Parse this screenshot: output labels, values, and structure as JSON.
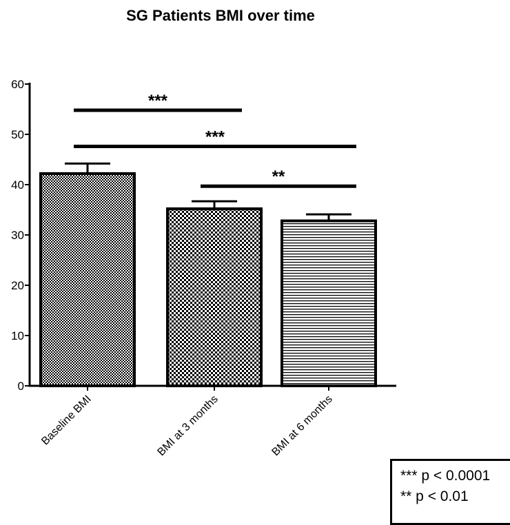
{
  "chart_data": {
    "type": "bar",
    "title": "SG Patients BMI over time",
    "categories": [
      "Baseline BMI",
      "BMI at 3 months",
      "BMI at 6 months"
    ],
    "values": [
      42.2,
      35.2,
      32.8
    ],
    "error_upper": [
      2.0,
      1.5,
      1.3
    ],
    "patterns": [
      "fine-checker",
      "checker",
      "horizontal-lines"
    ],
    "ylim": [
      0,
      60
    ],
    "yticks": [
      "0",
      "10",
      "20",
      "30",
      "40",
      "50",
      "60"
    ],
    "xlabel": "",
    "ylabel": "",
    "significance": [
      {
        "from": "Baseline BMI",
        "to": "BMI at 3 months",
        "label": "***",
        "y": 54.8
      },
      {
        "from": "Baseline BMI",
        "to": "BMI at 6 months",
        "label": "***",
        "y": 47.6
      },
      {
        "from": "BMI at 3 months",
        "to": "BMI at 6 months",
        "label": "**",
        "y": 39.7
      }
    ],
    "legend": {
      "placement": "bottom-right",
      "entries": [
        "*** p < 0.0001",
        "** p < 0.01"
      ]
    }
  }
}
